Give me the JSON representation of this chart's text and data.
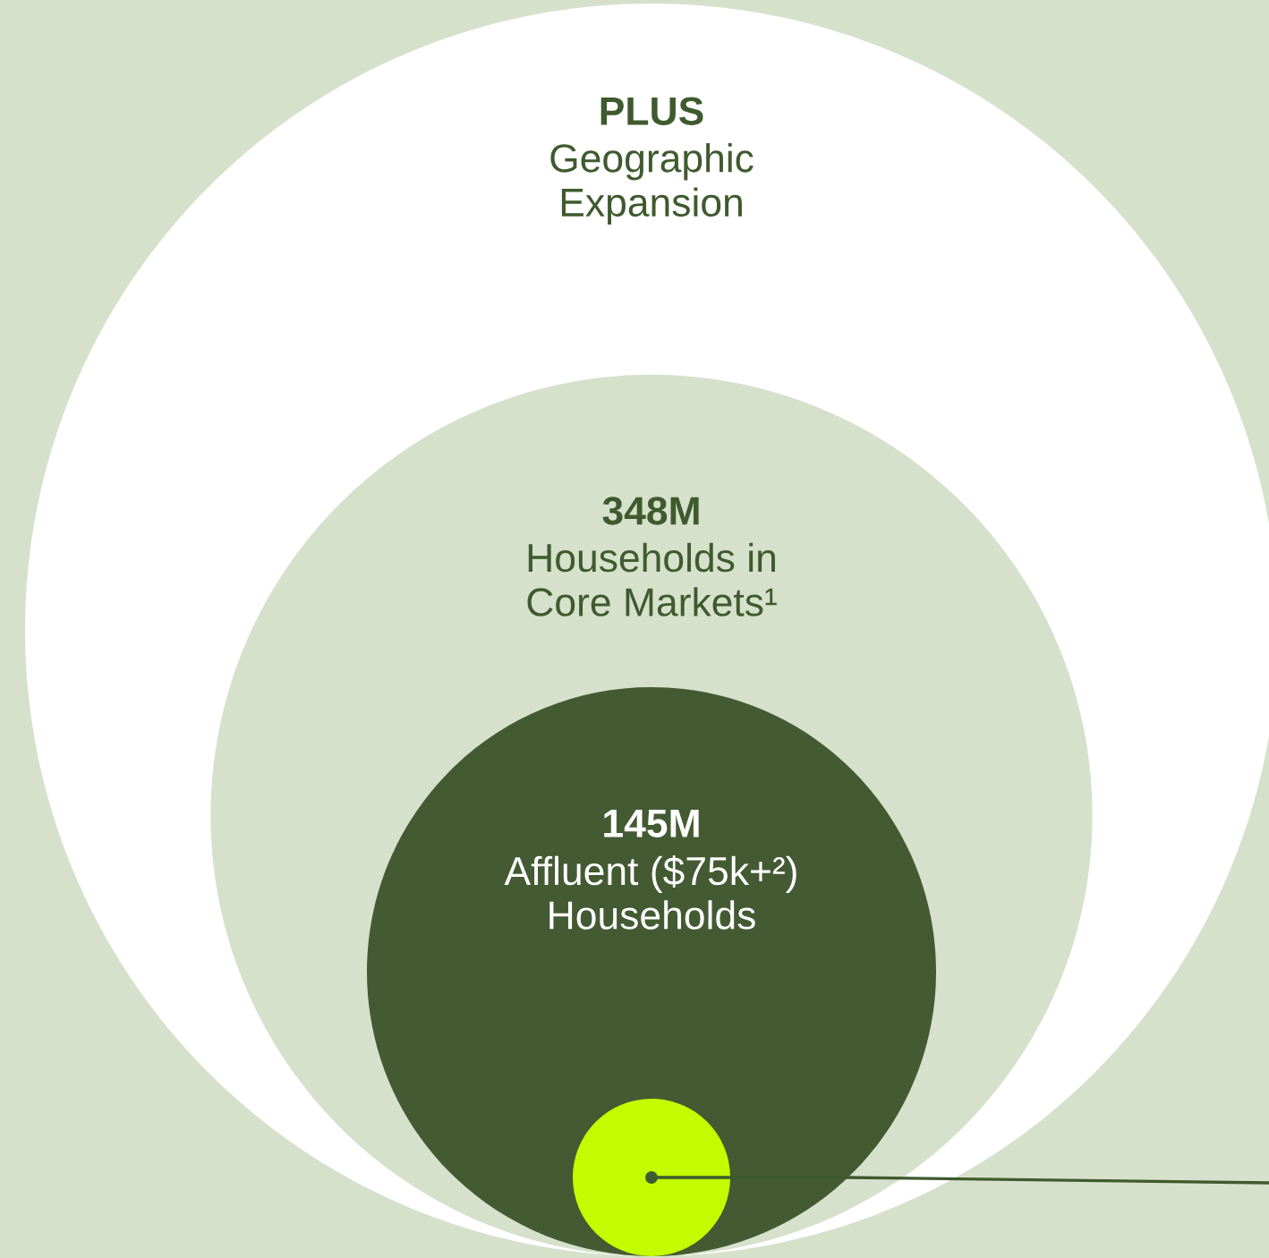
{
  "chart_data": {
    "type": "other",
    "categories": [
      "Geographic\nExpansion",
      "Households in\nCore Markets¹",
      "Affluent ($75k+²)\nHouseholds",
      null
    ],
    "values": [
      null,
      348,
      145,
      null
    ],
    "value_labels": [
      "PLUS",
      "348M",
      "145M",
      null
    ],
    "colors": [
      "#ffffff",
      "#d6e1cc",
      "#445a33",
      "#c3fb00"
    ]
  }
}
